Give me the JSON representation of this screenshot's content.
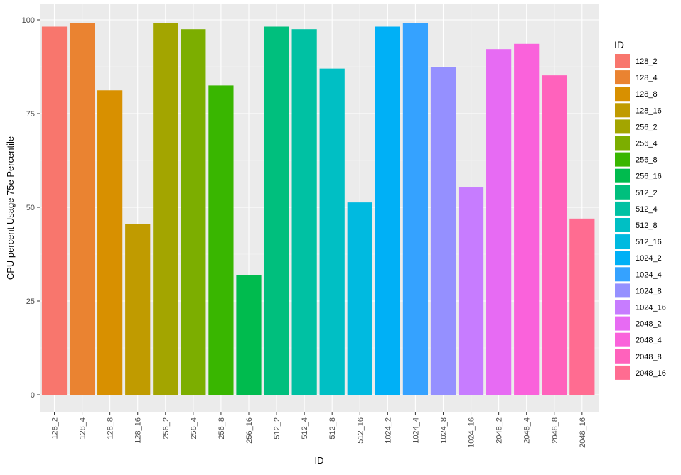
{
  "chart_data": {
    "type": "bar",
    "title": "",
    "xlabel": "ID",
    "ylabel": "CPU percent Usage 75e Percentile",
    "ylim": [
      0,
      100
    ],
    "yticks": [
      0,
      25,
      50,
      75,
      100
    ],
    "grid": true,
    "legend_title": "ID",
    "legend_position": "right",
    "categories": [
      "128_2",
      "128_4",
      "128_8",
      "128_16",
      "256_2",
      "256_4",
      "256_8",
      "256_16",
      "512_2",
      "512_4",
      "512_8",
      "512_16",
      "1024_2",
      "1024_4",
      "1024_8",
      "1024_16",
      "2048_2",
      "2048_4",
      "2048_8",
      "2048_16"
    ],
    "values": [
      98.2,
      99.2,
      81.2,
      45.6,
      99.2,
      97.5,
      82.5,
      32.0,
      98.2,
      97.5,
      87.0,
      51.3,
      98.2,
      99.2,
      87.5,
      55.3,
      92.2,
      93.6,
      85.2,
      47.0
    ],
    "colors": [
      "#F8766D",
      "#EA8331",
      "#D89000",
      "#C09B00",
      "#A3A500",
      "#7CAE00",
      "#39B600",
      "#00BB4E",
      "#00BF7D",
      "#00C1A3",
      "#00BFC4",
      "#00BAE0",
      "#00B0F6",
      "#35A2FF",
      "#9590FF",
      "#C77CFF",
      "#E76BF3",
      "#FA62DB",
      "#FF62BC",
      "#FF6C91"
    ]
  }
}
